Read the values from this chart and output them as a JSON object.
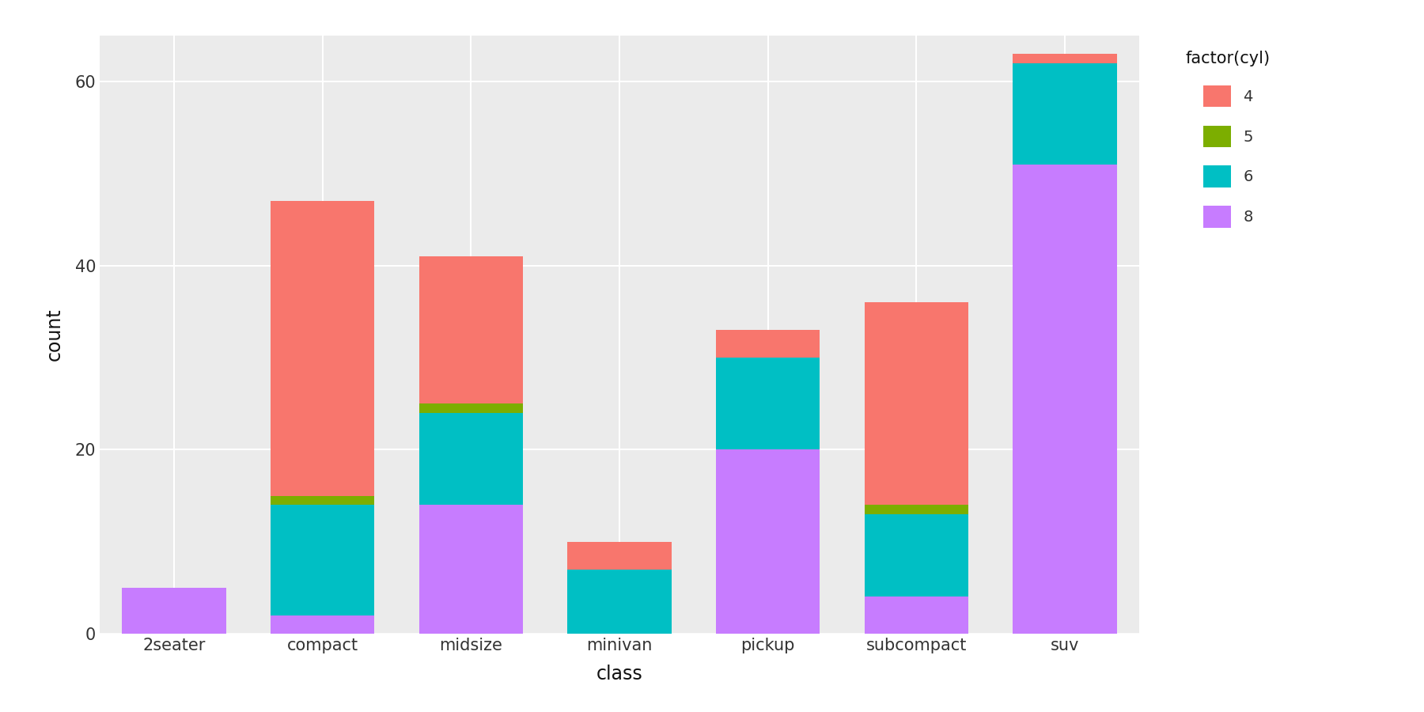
{
  "categories": [
    "2seater",
    "compact",
    "midsize",
    "minivan",
    "pickup",
    "subcompact",
    "suv"
  ],
  "cyl4": [
    0,
    32,
    16,
    3,
    3,
    22,
    1
  ],
  "cyl5": [
    0,
    1,
    1,
    0,
    0,
    1,
    0
  ],
  "cyl6": [
    0,
    12,
    10,
    7,
    10,
    9,
    11
  ],
  "cyl8": [
    5,
    2,
    14,
    0,
    20,
    4,
    51
  ],
  "colors": {
    "4": "#F8766D",
    "5": "#7CAE00",
    "6": "#00BFC4",
    "8": "#C77CFF"
  },
  "legend_title": "factor(cyl)",
  "legend_labels": [
    "4",
    "5",
    "6",
    "8"
  ],
  "xlabel": "class",
  "ylabel": "count",
  "ylim": [
    0,
    65
  ],
  "yticks": [
    0,
    20,
    40,
    60
  ],
  "background_color": "#EBEBEB",
  "grid_color": "#FFFFFF",
  "axis_fontsize": 15,
  "label_fontsize": 17,
  "legend_fontsize": 14,
  "legend_title_fontsize": 15
}
